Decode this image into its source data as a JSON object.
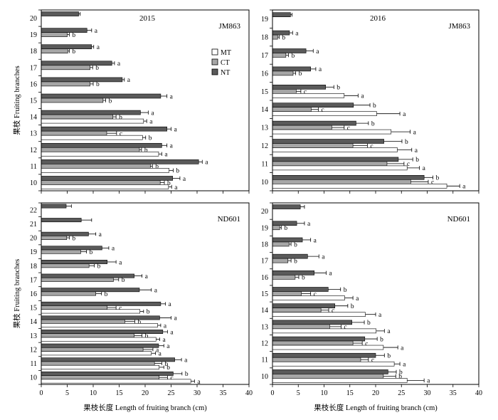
{
  "legend": [
    {
      "label": "MT",
      "color": "#ffffff"
    },
    {
      "label": "CT",
      "color": "#a6a6a6"
    },
    {
      "label": "NT",
      "color": "#5a5a5a"
    }
  ],
  "chart_data": [
    {
      "type": "bar",
      "orientation": "horizontal",
      "year_label": "2015",
      "cultivar_label": "JM863",
      "ylabel": "果枝 Fruiting branches",
      "xlim": [
        0,
        40
      ],
      "xticks": [
        0,
        5,
        10,
        15,
        20,
        25,
        30,
        35,
        40
      ],
      "show_xtick_labels": false,
      "categories": [
        "20",
        "19",
        "18",
        "17",
        "16",
        "15",
        "14",
        "13",
        "12",
        "11",
        "10"
      ],
      "series": [
        {
          "name": "NT",
          "color": "#5a5a5a",
          "values": [
            7.2,
            8.8,
            9.7,
            13.6,
            15.6,
            23.0,
            19.1,
            24.2,
            23.2,
            30.3,
            25.3
          ],
          "errors": [
            0.3,
            0.9,
            0.4,
            0.5,
            0.4,
            1.2,
            1.5,
            0.8,
            1.0,
            0.7,
            1.4
          ],
          "letters": [
            "",
            "a",
            "a",
            "a",
            "a",
            "a",
            "a",
            "a",
            "a",
            "a",
            "a"
          ]
        },
        {
          "name": "CT",
          "color": "#a6a6a6",
          "values": [
            null,
            5.0,
            5.1,
            9.4,
            9.4,
            11.9,
            13.8,
            12.6,
            18.9,
            21.0,
            22.9
          ],
          "errors": [
            null,
            0.4,
            0.3,
            0.5,
            0.6,
            0.5,
            0.6,
            1.9,
            0.4,
            0.4,
            0.8
          ],
          "letters": [
            "",
            "b",
            "b",
            "b",
            "b",
            "b",
            "b",
            "c",
            "b",
            "b",
            "b"
          ]
        },
        {
          "name": "MT",
          "color": "#ffffff",
          "values": [
            null,
            null,
            null,
            null,
            null,
            null,
            19.7,
            19.5,
            22.6,
            24.6,
            24.5
          ],
          "errors": [
            null,
            null,
            null,
            null,
            null,
            null,
            0.6,
            0.6,
            0.6,
            0.8,
            0.6
          ],
          "letters": [
            "",
            "",
            "",
            "",
            "",
            "",
            "a",
            "b",
            "a",
            "b",
            "a"
          ]
        }
      ]
    },
    {
      "type": "bar",
      "orientation": "horizontal",
      "year_label": "2016",
      "cultivar_label": "JM863",
      "xlim": [
        0,
        40
      ],
      "xticks": [
        0,
        5,
        10,
        15,
        20,
        25,
        30,
        35,
        40
      ],
      "show_xtick_labels": false,
      "categories": [
        "19",
        "18",
        "17",
        "16",
        "15",
        "14",
        "13",
        "12",
        "11",
        "10"
      ],
      "series": [
        {
          "name": "NT",
          "color": "#5a5a5a",
          "values": [
            3.5,
            3.3,
            6.5,
            7.4,
            10.3,
            15.7,
            16.2,
            21.6,
            24.4,
            29.4
          ],
          "errors": [
            0.3,
            0.6,
            1.4,
            1.0,
            1.6,
            3.2,
            2.4,
            3.5,
            2.8,
            1.7
          ],
          "letters": [
            "",
            "a",
            "a",
            "a",
            "b",
            "b",
            "b",
            "b",
            "b",
            "b"
          ]
        },
        {
          "name": "CT",
          "color": "#a6a6a6",
          "values": [
            null,
            1.0,
            2.6,
            4.0,
            4.6,
            7.5,
            11.5,
            15.6,
            22.2,
            26.8
          ],
          "errors": [
            null,
            0.3,
            0.5,
            0.5,
            0.9,
            1.4,
            2.4,
            2.8,
            3.3,
            3.4
          ],
          "letters": [
            "",
            "b",
            "b",
            "b",
            "c",
            "c",
            "c",
            "c",
            "c",
            "c"
          ]
        },
        {
          "name": "MT",
          "color": "#ffffff",
          "values": [
            null,
            null,
            null,
            null,
            13.9,
            20.2,
            23.0,
            24.2,
            26.1,
            33.8
          ],
          "errors": [
            null,
            null,
            null,
            null,
            2.7,
            4.5,
            3.7,
            2.8,
            2.4,
            2.5
          ],
          "letters": [
            "",
            "",
            "",
            "",
            "a",
            "a",
            "a",
            "a",
            "a",
            "a"
          ]
        }
      ]
    },
    {
      "type": "bar",
      "orientation": "horizontal",
      "cultivar_label": "ND601",
      "ylabel": "果枝 Fruiting branches",
      "xlabel": "果枝长度 Length of fruiting branch (cm)",
      "xlim": [
        0,
        40
      ],
      "xticks": [
        0,
        5,
        10,
        15,
        20,
        25,
        30,
        35,
        40
      ],
      "show_xtick_labels": true,
      "categories": [
        "22",
        "21",
        "20",
        "19",
        "18",
        "17",
        "16",
        "15",
        "14",
        "13",
        "12",
        "11",
        "10"
      ],
      "series": [
        {
          "name": "NT",
          "color": "#5a5a5a",
          "values": [
            4.8,
            7.7,
            9.1,
            11.7,
            12.7,
            17.9,
            18.9,
            23.0,
            22.8,
            23.4,
            22.6,
            25.7,
            25.4
          ],
          "errors": [
            1.0,
            2.0,
            1.4,
            1.3,
            1.7,
            1.5,
            2.3,
            0.9,
            2.2,
            0.9,
            1.0,
            1.3,
            1.7
          ],
          "letters": [
            "",
            "",
            "a",
            "a",
            "a",
            "a",
            "a",
            "a",
            "a",
            "a",
            "a",
            "a",
            "b"
          ]
        },
        {
          "name": "CT",
          "color": "#a6a6a6",
          "values": [
            null,
            null,
            4.9,
            7.6,
            9.2,
            13.9,
            10.5,
            12.7,
            16.1,
            17.9,
            19.6,
            21.8,
            22.7
          ],
          "errors": [
            null,
            null,
            0.5,
            1.1,
            1.0,
            1.0,
            1.1,
            1.7,
            1.9,
            1.5,
            1.9,
            1.4,
            1.6
          ],
          "letters": [
            "",
            "",
            "b",
            "b",
            "b",
            "b",
            "b",
            "c",
            "b",
            "b",
            "a",
            "b",
            "c"
          ]
        },
        {
          "name": "MT",
          "color": "#ffffff",
          "values": [
            null,
            null,
            null,
            null,
            null,
            null,
            null,
            19.0,
            22.4,
            22.1,
            21.2,
            22.7,
            28.8
          ],
          "errors": [
            null,
            null,
            null,
            null,
            null,
            null,
            null,
            0.7,
            0.6,
            0.7,
            0.8,
            0.9,
            0.7
          ],
          "letters": [
            "",
            "",
            "",
            "",
            "",
            "",
            "",
            "b",
            "a",
            "a",
            "a",
            "b",
            "a"
          ]
        }
      ]
    },
    {
      "type": "bar",
      "orientation": "horizontal",
      "cultivar_label": "ND601",
      "xlabel": "果枝长度 Length of fruiting branch (cm)",
      "xlim": [
        0,
        40
      ],
      "xticks": [
        0,
        5,
        10,
        15,
        20,
        25,
        30,
        35,
        40
      ],
      "show_xtick_labels": true,
      "categories": [
        "20",
        "19",
        "18",
        "17",
        "16",
        "15",
        "14",
        "13",
        "12",
        "11",
        "10"
      ],
      "series": [
        {
          "name": "NT",
          "color": "#5a5a5a",
          "values": [
            5.4,
            4.7,
            5.8,
            6.8,
            8.1,
            10.8,
            12.1,
            15.4,
            17.9,
            20.0,
            22.4
          ],
          "errors": [
            0.8,
            1.5,
            1.6,
            2.2,
            2.3,
            2.4,
            2.5,
            2.4,
            2.4,
            1.7,
            1.6
          ],
          "letters": [
            "",
            "a",
            "a",
            "a",
            "a",
            "b",
            "b",
            "b",
            "b",
            "b",
            "b"
          ]
        },
        {
          "name": "CT",
          "color": "#a6a6a6",
          "values": [
            null,
            1.4,
            3.2,
            3.0,
            4.4,
            5.6,
            9.4,
            11.1,
            15.6,
            17.1,
            21.5
          ],
          "errors": [
            null,
            0.3,
            0.4,
            0.6,
            0.7,
            1.8,
            1.5,
            2.2,
            1.8,
            1.5,
            2.4
          ],
          "letters": [
            "",
            "b",
            "b",
            "b",
            "b",
            "c",
            "c",
            "c",
            "c",
            "c",
            "b"
          ]
        },
        {
          "name": "MT",
          "color": "#ffffff",
          "values": [
            null,
            null,
            null,
            null,
            null,
            14.0,
            18.0,
            20.1,
            21.5,
            23.6,
            26.1
          ],
          "errors": [
            null,
            null,
            null,
            null,
            null,
            1.6,
            2.0,
            1.6,
            2.8,
            1.1,
            3.3
          ],
          "letters": [
            "",
            "",
            "",
            "",
            "",
            "a",
            "a",
            "a",
            "a",
            "a",
            "a"
          ]
        }
      ]
    }
  ]
}
